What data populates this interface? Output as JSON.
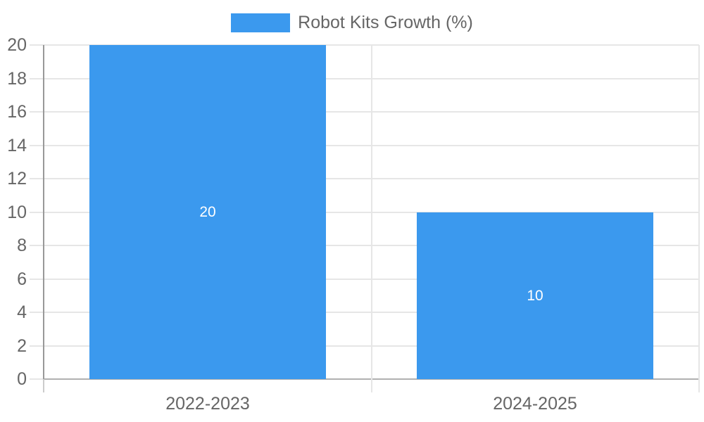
{
  "chart_data": {
    "type": "bar",
    "title": "Robot Kits Growth (%)",
    "legend_entries": [
      "Robot Kits Growth (%)"
    ],
    "legend_position": "top",
    "categories": [
      "2022-2023",
      "2024-2025"
    ],
    "values": [
      20,
      10
    ],
    "bar_labels": [
      "20",
      "10"
    ],
    "xlabel": "",
    "ylabel": "",
    "ylim": [
      0,
      20
    ],
    "ytick_step": 2,
    "ytick_labels": [
      "0",
      "2",
      "4",
      "6",
      "8",
      "10",
      "12",
      "14",
      "16",
      "18",
      "20"
    ],
    "grid": true,
    "colors": {
      "bar": "#3B99EE",
      "bar_label_text": "#FFFFFF",
      "gridline": "#E6E6E6",
      "y_axis_line": "#999999",
      "x_axis_line": "#B0B0B0",
      "below_axis_tick": "#CCCCCC",
      "tick_text": "#666666",
      "legend_text": "#666666",
      "background": "#FFFFFF"
    }
  }
}
